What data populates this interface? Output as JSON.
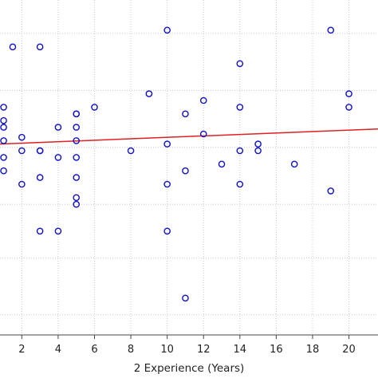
{
  "chart_data": {
    "type": "scatter",
    "xlabel": "2 Experience (Years)",
    "x_ticks": [
      2,
      4,
      6,
      8,
      10,
      12,
      14,
      16,
      18,
      20
    ],
    "xlim": [
      0.8,
      21.6
    ],
    "ylim": [
      0,
      10
    ],
    "grid": true,
    "marker_color": "#1010c8",
    "trend_color": "#e02020",
    "series": [
      {
        "points": [
          {
            "x": 1,
            "y": 5.3
          },
          {
            "x": 1,
            "y": 5.8
          },
          {
            "x": 1,
            "y": 6.2
          },
          {
            "x": 1,
            "y": 6.4
          },
          {
            "x": 1,
            "y": 4.9
          },
          {
            "x": 1,
            "y": 6.8
          },
          {
            "x": 1.5,
            "y": 8.6
          },
          {
            "x": 2,
            "y": 5.9
          },
          {
            "x": 2,
            "y": 5.5
          },
          {
            "x": 2,
            "y": 4.5
          },
          {
            "x": 3,
            "y": 8.6
          },
          {
            "x": 3,
            "y": 5.5
          },
          {
            "x": 3,
            "y": 5.5
          },
          {
            "x": 3,
            "y": 4.7
          },
          {
            "x": 3,
            "y": 3.1
          },
          {
            "x": 4,
            "y": 6.2
          },
          {
            "x": 4,
            "y": 5.3
          },
          {
            "x": 4,
            "y": 3.1
          },
          {
            "x": 5,
            "y": 6.6
          },
          {
            "x": 5,
            "y": 6.6
          },
          {
            "x": 5,
            "y": 6.2
          },
          {
            "x": 5,
            "y": 5.8
          },
          {
            "x": 5,
            "y": 5.3
          },
          {
            "x": 5,
            "y": 4.7
          },
          {
            "x": 5,
            "y": 4.1
          },
          {
            "x": 5,
            "y": 3.9
          },
          {
            "x": 6,
            "y": 6.8
          },
          {
            "x": 8,
            "y": 5.5
          },
          {
            "x": 9,
            "y": 7.2
          },
          {
            "x": 10,
            "y": 9.1
          },
          {
            "x": 10,
            "y": 5.7
          },
          {
            "x": 10,
            "y": 4.5
          },
          {
            "x": 10,
            "y": 3.1
          },
          {
            "x": 11,
            "y": 6.6
          },
          {
            "x": 11,
            "y": 4.9
          },
          {
            "x": 11,
            "y": 1.1
          },
          {
            "x": 12,
            "y": 7.0
          },
          {
            "x": 12,
            "y": 6.0
          },
          {
            "x": 13,
            "y": 5.1
          },
          {
            "x": 14,
            "y": 8.1
          },
          {
            "x": 14,
            "y": 6.8
          },
          {
            "x": 14,
            "y": 5.5
          },
          {
            "x": 14,
            "y": 4.5
          },
          {
            "x": 15,
            "y": 5.7
          },
          {
            "x": 15,
            "y": 5.5
          },
          {
            "x": 17,
            "y": 5.1
          },
          {
            "x": 19,
            "y": 9.1
          },
          {
            "x": 19,
            "y": 4.3
          },
          {
            "x": 20,
            "y": 7.2
          },
          {
            "x": 20,
            "y": 6.8
          }
        ]
      }
    ],
    "trend_line": {
      "x": [
        0.8,
        21.6
      ],
      "y": [
        5.7,
        6.15
      ]
    }
  }
}
